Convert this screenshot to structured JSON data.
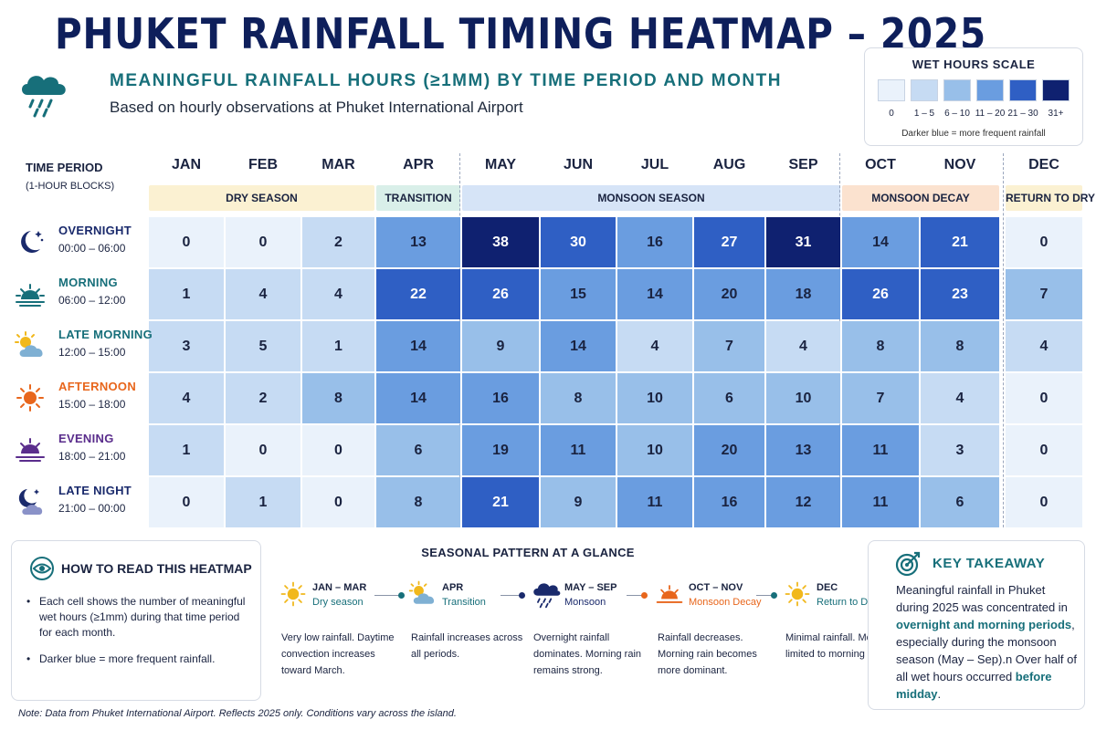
{
  "header": {
    "title": "PHUKET RAINFALL TIMING HEATMAP – 2025",
    "subtitle": "MEANINGFUL RAINFALL HOURS (≥1MM) BY TIME PERIOD AND MONTH",
    "description": "Based on hourly observations at Phuket International Airport"
  },
  "scale": {
    "title": "WET HOURS SCALE",
    "bins": [
      {
        "label": "0",
        "color": "#eaf2fb"
      },
      {
        "label": "1 – 5",
        "color": "#c6dbf3"
      },
      {
        "label": "6 – 10",
        "color": "#98bfe9"
      },
      {
        "label": "11 – 20",
        "color": "#6a9de0"
      },
      {
        "label": "21 – 30",
        "color": "#2f5fc4"
      },
      {
        "label": "31+",
        "color": "#0f2170"
      }
    ],
    "note": "Darker blue = more frequent rainfall"
  },
  "row_header": {
    "title": "TIME PERIOD",
    "subtitle": "(1-HOUR BLOCKS)"
  },
  "seasons": [
    {
      "label": "DRY SEASON",
      "from": 0,
      "to": 2,
      "color": "#fbf1d2"
    },
    {
      "label": "TRANSITION",
      "from": 3,
      "to": 3,
      "color": "#d9efe9"
    },
    {
      "label": "MONSOON SEASON",
      "from": 4,
      "to": 8,
      "color": "#d6e4f7"
    },
    {
      "label": "MONSOON DECAY",
      "from": 9,
      "to": 10,
      "color": "#fbe2cf"
    },
    {
      "label": "RETURN TO DRY",
      "from": 11,
      "to": 11,
      "color": "#fbf1d2"
    }
  ],
  "periods": [
    {
      "name": "OVERNIGHT",
      "time": "00:00 – 06:00",
      "color": "#1a2a6c",
      "icon": "moon-stars-icon"
    },
    {
      "name": "MORNING",
      "time": "06:00 – 12:00",
      "color": "#176f7a",
      "icon": "sunrise-icon"
    },
    {
      "name": "LATE MORNING",
      "time": "12:00 – 15:00",
      "color": "#176f7a",
      "icon": "sun-cloud-icon"
    },
    {
      "name": "AFTERNOON",
      "time": "15:00 – 18:00",
      "color": "#e8661c",
      "icon": "sun-icon"
    },
    {
      "name": "EVENING",
      "time": "18:00 – 21:00",
      "color": "#5a2d8c",
      "icon": "sunset-icon"
    },
    {
      "name": "LATE NIGHT",
      "time": "21:00 – 00:00",
      "color": "#1a2a6c",
      "icon": "moon-cloud-icon"
    }
  ],
  "chart_data": {
    "type": "heatmap",
    "title": "PHUKET RAINFALL TIMING HEATMAP – 2025",
    "x": [
      "JAN",
      "FEB",
      "MAR",
      "APR",
      "MAY",
      "JUN",
      "JUL",
      "AUG",
      "SEP",
      "OCT",
      "NOV",
      "DEC"
    ],
    "y": [
      "OVERNIGHT",
      "MORNING",
      "LATE MORNING",
      "AFTERNOON",
      "EVENING",
      "LATE NIGHT"
    ],
    "values": [
      [
        0,
        0,
        2,
        13,
        38,
        30,
        16,
        27,
        31,
        14,
        21,
        0
      ],
      [
        1,
        4,
        4,
        22,
        26,
        15,
        14,
        20,
        18,
        26,
        23,
        7
      ],
      [
        3,
        5,
        1,
        14,
        9,
        14,
        4,
        7,
        4,
        8,
        8,
        4
      ],
      [
        4,
        2,
        8,
        14,
        16,
        8,
        10,
        6,
        10,
        7,
        4,
        0
      ],
      [
        1,
        0,
        0,
        6,
        19,
        11,
        10,
        20,
        13,
        11,
        3,
        0
      ],
      [
        0,
        1,
        0,
        8,
        21,
        9,
        11,
        16,
        12,
        11,
        6,
        0
      ]
    ]
  },
  "howto": {
    "title": "HOW TO READ THIS HEATMAP",
    "items": [
      "Each cell shows the number of meaningful wet hours (≥1mm) during that time period for each month.",
      "Darker blue = more frequent rainfall."
    ]
  },
  "seasonal": {
    "title": "SEASONAL PATTERN AT A GLANCE",
    "items": [
      {
        "range": "JAN – MAR",
        "name": "Dry season",
        "desc": "Very low rainfall. Daytime convection increases toward March.",
        "color": "#176f7a",
        "icon": "sun-icon"
      },
      {
        "range": "APR",
        "name": "Transition",
        "desc": "Rainfall increases across all periods.",
        "color": "#176f7a",
        "icon": "sun-cloud-icon"
      },
      {
        "range": "MAY – SEP",
        "name": "Monsoon",
        "desc": "Overnight rainfall dominates. Morning rain remains strong.",
        "color": "#1a2a6c",
        "icon": "rain-cloud-icon"
      },
      {
        "range": "OCT – NOV",
        "name": "Monsoon Decay",
        "desc": "Rainfall decreases. Morning rain becomes more dominant.",
        "color": "#e8661c",
        "icon": "sunset-icon"
      },
      {
        "range": "DEC",
        "name": "Return to Dry",
        "desc": "Minimal rainfall. Mostly limited to morning hours.",
        "color": "#176f7a",
        "icon": "sun-icon"
      }
    ]
  },
  "takeaway": {
    "title": "KEY TAKEAWAY",
    "text_1": "Meaningful rainfall in Phuket during 2025 was concentrated in ",
    "bold_1": "overnight and morning periods",
    "text_2": ", especially during the monsoon season (May – Sep).n Over half of all wet hours occurred ",
    "bold_2": "before midday",
    "text_3": "."
  },
  "footnote": "Note: Data from Phuket International Airport. Reflects 2025 only. Conditions vary across the island."
}
